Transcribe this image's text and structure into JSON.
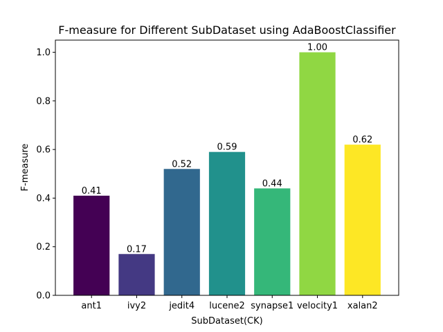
{
  "chart_data": {
    "type": "bar",
    "title": "F-measure for Different SubDataset using AdaBoostClassifier",
    "xlabel": "SubDataset(CK)",
    "ylabel": "F-measure",
    "categories": [
      "ant1",
      "ivy2",
      "jedit4",
      "lucene2",
      "synapse1",
      "velocity1",
      "xalan2"
    ],
    "values": [
      0.41,
      0.17,
      0.52,
      0.59,
      0.44,
      1.0,
      0.62
    ],
    "data_labels": [
      "0.41",
      "0.17",
      "0.52",
      "0.59",
      "0.44",
      "1.00",
      "0.62"
    ],
    "colors": [
      "#440154",
      "#443983",
      "#31688e",
      "#21918c",
      "#35b779",
      "#90d743",
      "#fde725"
    ],
    "ylim": [
      0,
      1.05
    ],
    "yticks": [
      0.0,
      0.2,
      0.4,
      0.6,
      0.8,
      1.0
    ],
    "ytick_labels": [
      "0.0",
      "0.2",
      "0.4",
      "0.6",
      "0.8",
      "1.0"
    ],
    "grid": false,
    "legend": "none"
  }
}
